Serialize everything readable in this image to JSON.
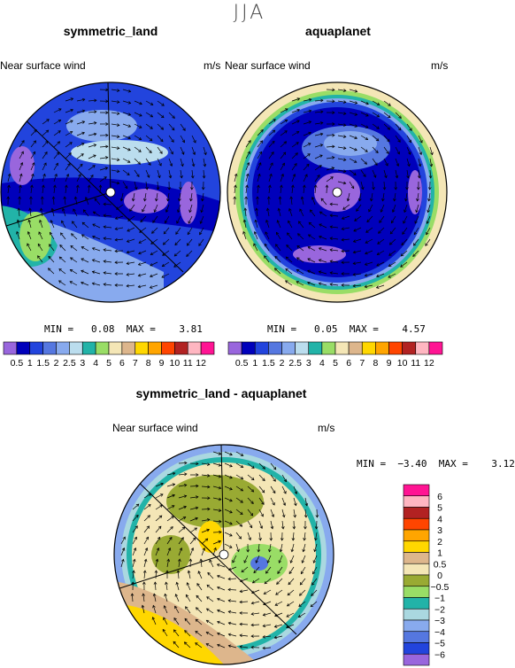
{
  "suptitle": "JJA",
  "panels": [
    {
      "title": "symmetric_land",
      "left_label": "Near surface wind",
      "units": "m/s",
      "min_label": "MIN =",
      "min_value": "0.08",
      "max_label": "MAX =",
      "max_value": "3.81"
    },
    {
      "title": "aquaplanet",
      "left_label": "Near surface wind",
      "units": "m/s",
      "min_label": "MIN =",
      "min_value": "0.05",
      "max_label": "MAX =",
      "max_value": "4.57"
    },
    {
      "title": "symmetric_land - aquaplanet",
      "left_label": "Near surface wind",
      "units": "m/s",
      "min_label": "MIN =",
      "min_value": "−3.40",
      "max_label": "MAX =",
      "max_value": "3.12"
    }
  ],
  "chart_data": [
    {
      "type": "heatmap",
      "title": "symmetric_land",
      "variable": "Near surface wind",
      "units": "m/s",
      "projection": "polar",
      "min": 0.08,
      "max": 3.81,
      "levels": [
        "0.5",
        "1",
        "1.5",
        "2",
        "2.5",
        "3",
        "4",
        "5",
        "6",
        "7",
        "8",
        "9",
        "10",
        "11",
        "12"
      ],
      "colors": [
        "#9966dd",
        "#0000bb",
        "#2244dd",
        "#5577e0",
        "#88aaee",
        "#bbddee",
        "#22b3a8",
        "#99dd66",
        "#f4e6b6",
        "#ddb68c",
        "#ffd700",
        "#ffa500",
        "#ff4500",
        "#b22222",
        "#ffb6c1",
        "#ff1493"
      ]
    },
    {
      "type": "heatmap",
      "title": "aquaplanet",
      "variable": "Near surface wind",
      "units": "m/s",
      "projection": "polar",
      "min": 0.05,
      "max": 4.57,
      "levels": [
        "0.5",
        "1",
        "1.5",
        "2",
        "2.5",
        "3",
        "4",
        "5",
        "6",
        "7",
        "8",
        "9",
        "10",
        "11",
        "12"
      ],
      "colors": [
        "#9966dd",
        "#0000bb",
        "#2244dd",
        "#5577e0",
        "#88aaee",
        "#bbddee",
        "#22b3a8",
        "#99dd66",
        "#f4e6b6",
        "#ddb68c",
        "#ffd700",
        "#ffa500",
        "#ff4500",
        "#b22222",
        "#ffb6c1",
        "#ff1493"
      ]
    },
    {
      "type": "heatmap",
      "title": "symmetric_land - aquaplanet",
      "variable": "Near surface wind",
      "units": "m/s",
      "projection": "polar",
      "min": -3.4,
      "max": 3.12,
      "levels": [
        "6",
        "5",
        "4",
        "3",
        "2",
        "1",
        "0.5",
        "0",
        "−0.5",
        "−1",
        "−2",
        "−3",
        "−4",
        "−5",
        "−6"
      ],
      "colors": [
        "#ff1493",
        "#ffb6c1",
        "#b22222",
        "#ff4500",
        "#ffa500",
        "#ffd700",
        "#ddb68c",
        "#f4e6b6",
        "#99aa33",
        "#99dd66",
        "#22b3a8",
        "#aad8e0",
        "#88aaee",
        "#5577e0",
        "#2244dd",
        "#9966dd"
      ]
    }
  ]
}
